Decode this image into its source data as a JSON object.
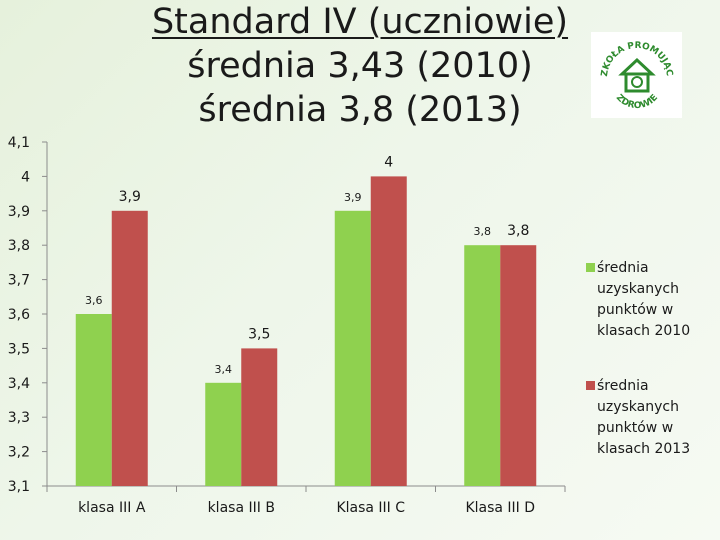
{
  "title": {
    "line1": "Standard IV (uczniowie)",
    "line2": "średnia 3,43 (2010)",
    "line3": "średnia 3,8 (2013)"
  },
  "colors": {
    "series_2010": "#8fd14f",
    "series_2013": "#c0504d",
    "axis": "#8c8c8c"
  },
  "logo": {
    "icon": "school-promoting-health-logo",
    "text_top": "SZKOŁA PROMUJĄCA",
    "text_bottom": "ZDROWIE"
  },
  "chart_data": {
    "type": "bar",
    "categories": [
      "klasa III A",
      "klasa III B",
      "Klasa III C",
      "Klasa III D"
    ],
    "series": [
      {
        "name": "średnia uzyskanych punktów w klasach 2010",
        "values": [
          3.6,
          3.4,
          3.9,
          3.8
        ],
        "labels": [
          "3,6",
          "3,4",
          "3,9",
          "3,8"
        ]
      },
      {
        "name": "średnia uzyskanych punktów w klasach 2013",
        "values": [
          3.9,
          3.5,
          4.0,
          3.8
        ],
        "labels": [
          "3,9",
          "3,5",
          "4",
          "3,8"
        ]
      }
    ],
    "ylim": [
      3.1,
      4.1
    ],
    "yticks": [
      3.1,
      3.2,
      3.3,
      3.4,
      3.5,
      3.6,
      3.7,
      3.8,
      3.9,
      4.0,
      4.1
    ],
    "ytick_labels": [
      "3,1",
      "3,2",
      "3,3",
      "3,4",
      "3,5",
      "3,6",
      "3,7",
      "3,8",
      "3,9",
      "4",
      "4,1"
    ],
    "grid": false,
    "legend": "right"
  }
}
